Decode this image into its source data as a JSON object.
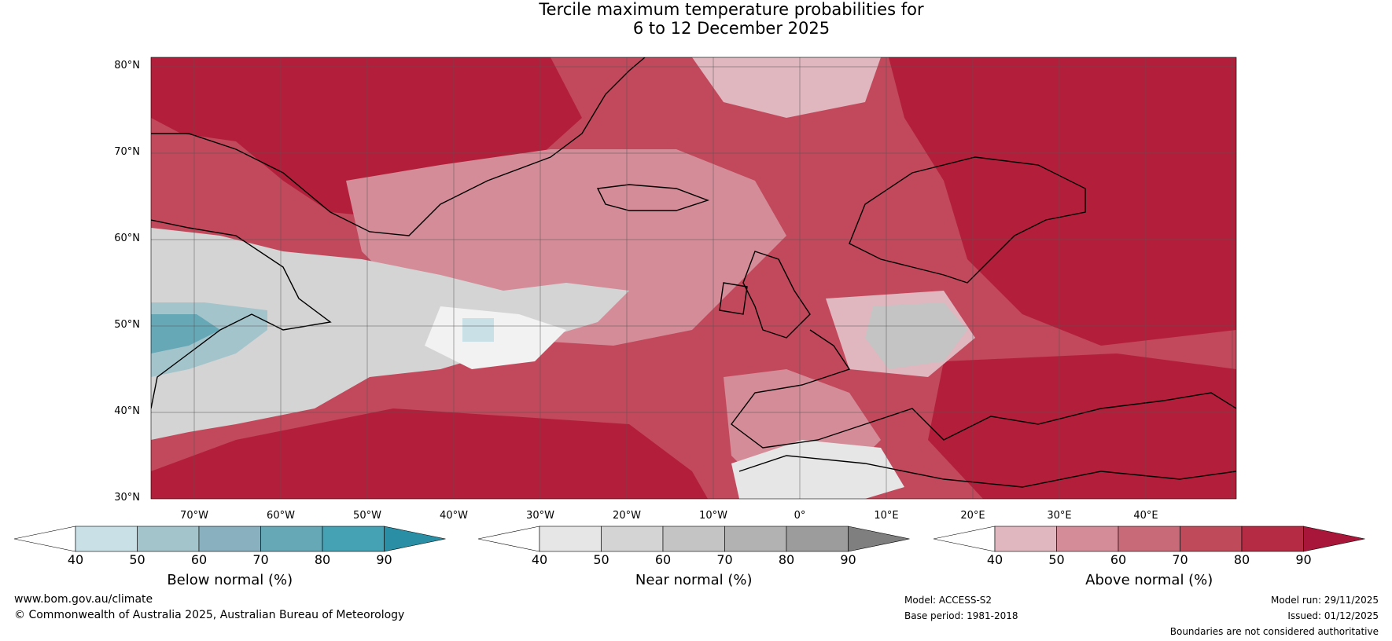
{
  "title": {
    "line1": "Tercile maximum temperature probabilities for",
    "line2": "6 to 12 December 2025"
  },
  "map": {
    "latitude_labels": [
      "80°N",
      "70°N",
      "60°N",
      "50°N",
      "40°N",
      "30°N"
    ],
    "longitude_labels": [
      "70°W",
      "60°W",
      "50°W",
      "40°W",
      "30°W",
      "20°W",
      "10°W",
      "0°",
      "10°E",
      "20°E",
      "30°E",
      "40°E"
    ],
    "colors": {
      "above": [
        "#e0b6bf",
        "#d48c98",
        "#c86a78",
        "#bf4a5a",
        "#b31f3a"
      ],
      "near": [
        "#e6e6e6",
        "#d4d4d4",
        "#c4c4c4",
        "#b2b2b2",
        "#9c9c9c"
      ],
      "below": [
        "#c9e0e6",
        "#a4c4cc",
        "#89b0be",
        "#66a8b6",
        "#3f9eb0"
      ],
      "coast": "#000000",
      "border": "#7a7a7a",
      "grid": "#555555"
    }
  },
  "colorbars": [
    {
      "name": "below",
      "label": "Below normal (%)",
      "ticks": [
        "40",
        "50",
        "60",
        "70",
        "80",
        "90"
      ],
      "colors": [
        "#ffffff",
        "#c9e0e6",
        "#a4c4cc",
        "#89b0be",
        "#66a8b6",
        "#45a1b4",
        "#2a8ea4"
      ]
    },
    {
      "name": "near",
      "label": "Near normal (%)",
      "ticks": [
        "40",
        "50",
        "60",
        "70",
        "80",
        "90"
      ],
      "colors": [
        "#ffffff",
        "#e6e6e6",
        "#d4d4d4",
        "#c4c4c4",
        "#b2b2b2",
        "#9c9c9c",
        "#7f7f7f"
      ]
    },
    {
      "name": "above",
      "label": "Above normal (%)",
      "ticks": [
        "40",
        "50",
        "60",
        "70",
        "80",
        "90"
      ],
      "colors": [
        "#ffffff",
        "#e0b6bf",
        "#d48c98",
        "#c86a78",
        "#bf4a5a",
        "#b62b44",
        "#a8173a"
      ]
    }
  ],
  "footer": {
    "website": "www.bom.gov.au/climate",
    "copyright": "© Commonwealth of Australia 2025, Australian Bureau of Meteorology",
    "model": "Model: ACCESS-S2",
    "base_period": "Base period: 1981-2018",
    "model_run": "Model run: 29/11/2025",
    "issued": "Issued: 01/12/2025",
    "disclaimer": "Boundaries are not considered authoritative"
  }
}
